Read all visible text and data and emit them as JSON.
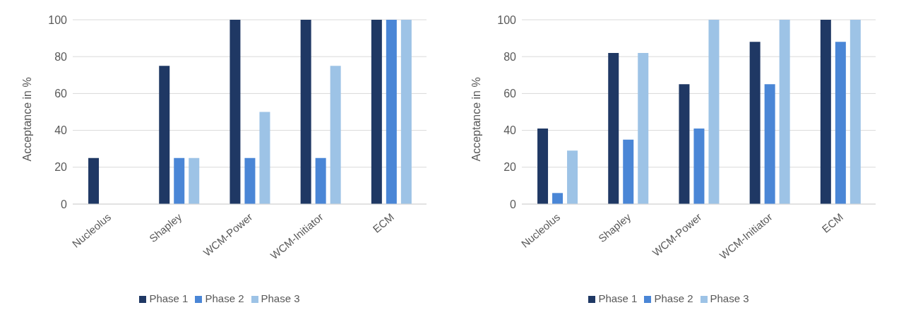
{
  "chart_data": [
    {
      "type": "bar",
      "categories": [
        "Nucleolus",
        "Shapley",
        "WCM-Power",
        "WCM-Initiator",
        "ECM"
      ],
      "ylabel": "Acceptance in %",
      "ylim": [
        0,
        100
      ],
      "yticks": [
        0,
        20,
        40,
        60,
        80,
        100
      ],
      "grid": "y",
      "legend": "bottom",
      "series": [
        {
          "name": "Phase 1",
          "color": "#1f3864",
          "values": [
            25,
            75,
            100,
            100,
            100
          ]
        },
        {
          "name": "Phase 2",
          "color": "#4a86d6",
          "values": [
            0,
            25,
            25,
            25,
            100
          ]
        },
        {
          "name": "Phase 3",
          "color": "#9dc3e6",
          "values": [
            0,
            25,
            50,
            75,
            100
          ]
        }
      ]
    },
    {
      "type": "bar",
      "categories": [
        "Nucleolus",
        "Shapley",
        "WCM-Power",
        "WCM-Initiator",
        "ECM"
      ],
      "ylabel": "Acceptance in %",
      "ylim": [
        0,
        100
      ],
      "yticks": [
        0,
        20,
        40,
        60,
        80,
        100
      ],
      "grid": "y",
      "legend": "bottom",
      "series": [
        {
          "name": "Phase 1",
          "color": "#1f3864",
          "values": [
            41,
            82,
            65,
            88,
            100
          ]
        },
        {
          "name": "Phase 2",
          "color": "#4a86d6",
          "values": [
            6,
            35,
            41,
            65,
            88
          ]
        },
        {
          "name": "Phase 3",
          "color": "#9dc3e6",
          "values": [
            29,
            82,
            100,
            100,
            100
          ]
        }
      ]
    }
  ]
}
